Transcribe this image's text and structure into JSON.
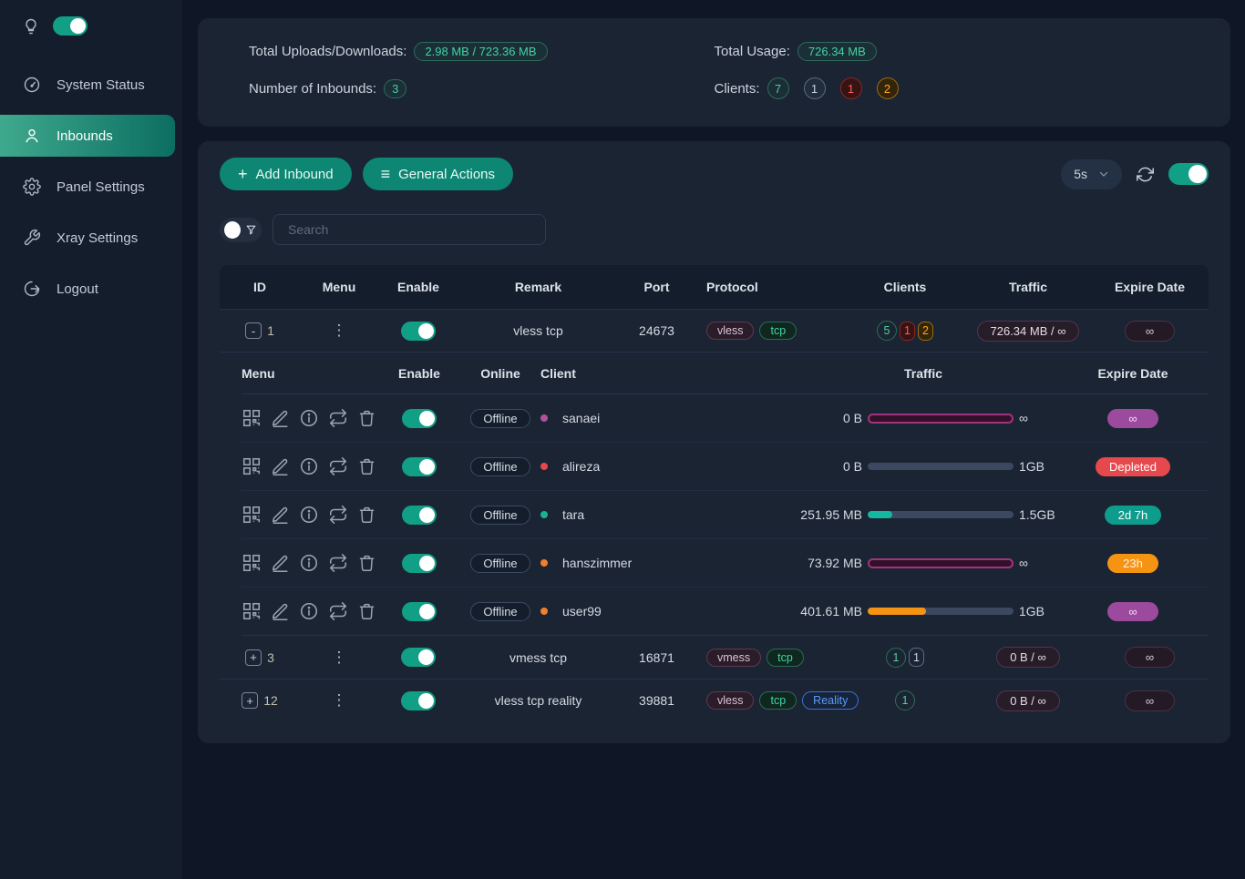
{
  "colors": {
    "page_bg": "#0f1726",
    "sidebar_bg": "#141d2b",
    "card_bg": "#1b2433",
    "accent_teal": "#0d8674",
    "toggle_on": "#11a085",
    "active_gradient": [
      "#3fa98e",
      "#0c6e61"
    ],
    "badge_purple": "#9c4a9e",
    "badge_red": "#e5484d",
    "badge_teal": "#0e9c8c",
    "badge_orange": "#f59313",
    "bar_magenta": "#a1347f",
    "bar_teal": "#14b8a0",
    "bar_orange": "#f59313"
  },
  "sidebar": {
    "items": [
      {
        "label": "System Status"
      },
      {
        "label": "Inbounds"
      },
      {
        "label": "Panel Settings"
      },
      {
        "label": "Xray Settings"
      },
      {
        "label": "Logout"
      }
    ]
  },
  "stats": {
    "uploads_label": "Total Uploads/Downloads:",
    "uploads_value": "2.98 MB / 723.36 MB",
    "inbounds_label": "Number of Inbounds:",
    "inbounds_value": "3",
    "usage_label": "Total Usage:",
    "usage_value": "726.34 MB",
    "clients_label": "Clients:",
    "client_counts": [
      {
        "value": "7",
        "variant": "green"
      },
      {
        "value": "1",
        "variant": "gray"
      },
      {
        "value": "1",
        "variant": "red"
      },
      {
        "value": "2",
        "variant": "orange"
      }
    ]
  },
  "toolbar": {
    "add_inbound": "Add Inbound",
    "general_actions": "General Actions",
    "refresh_interval": "5s"
  },
  "search": {
    "placeholder": "Search"
  },
  "table": {
    "headers": {
      "id": "ID",
      "menu": "Menu",
      "enable": "Enable",
      "remark": "Remark",
      "port": "Port",
      "protocol": "Protocol",
      "clients": "Clients",
      "traffic": "Traffic",
      "expire": "Expire Date"
    },
    "sub_headers": {
      "menu": "Menu",
      "enable": "Enable",
      "online": "Online",
      "client": "Client",
      "traffic": "Traffic",
      "expire": "Expire Date"
    }
  },
  "inbounds": [
    {
      "expand": "-",
      "id": "1",
      "remark": "vless tcp",
      "port": "24673",
      "protocols": [
        "vless",
        "tcp"
      ],
      "client_counts": [
        {
          "value": "5"
        },
        {
          "value": "1"
        },
        {
          "value": "2"
        }
      ],
      "traffic": "726.34 MB / ∞",
      "expire": "∞",
      "enabled": true
    },
    {
      "expand": "+",
      "id": "3",
      "remark": "vmess tcp",
      "port": "16871",
      "protocols": [
        "vmess",
        "tcp"
      ],
      "client_counts": [
        {
          "value": "1"
        },
        {
          "value": "1"
        }
      ],
      "traffic": "0 B / ∞",
      "expire": "∞",
      "enabled": true
    },
    {
      "expand": "+",
      "id": "12",
      "remark": "vless tcp reality",
      "port": "39881",
      "protocols": [
        "vless",
        "tcp",
        "Reality"
      ],
      "client_counts": [
        {
          "value": "1"
        }
      ],
      "traffic": "0 B / ∞",
      "expire": "∞",
      "enabled": true
    }
  ],
  "clients": [
    {
      "name": "sanaei",
      "online": "Offline",
      "used": "0 B",
      "limit": "∞",
      "bar_pct": "100%",
      "bar_style": "magenta",
      "expire": "∞",
      "expire_variant": "purple",
      "enabled": true
    },
    {
      "name": "alireza",
      "online": "Offline",
      "used": "0 B",
      "limit": "1GB",
      "bar_pct": "0%",
      "bar_style": "gray",
      "expire": "Depleted",
      "expire_variant": "red",
      "enabled": true
    },
    {
      "name": "tara",
      "online": "Offline",
      "used": "251.95 MB",
      "limit": "1.5GB",
      "bar_pct": "17%",
      "bar_style": "teal",
      "expire": "2d 7h",
      "expire_variant": "teal",
      "enabled": true
    },
    {
      "name": "hanszimmer",
      "online": "Offline",
      "used": "73.92 MB",
      "limit": "∞",
      "bar_pct": "100%",
      "bar_style": "magenta",
      "expire": "23h",
      "expire_variant": "orange",
      "enabled": true
    },
    {
      "name": "user99",
      "online": "Offline",
      "used": "401.61 MB",
      "limit": "1GB",
      "bar_pct": "40%",
      "bar_style": "orange",
      "expire": "∞",
      "expire_variant": "purple",
      "enabled": true
    }
  ],
  "icons": {
    "menu_dots": "⋮",
    "infinity": "∞",
    "plus": "+",
    "hamburger": "≡"
  }
}
